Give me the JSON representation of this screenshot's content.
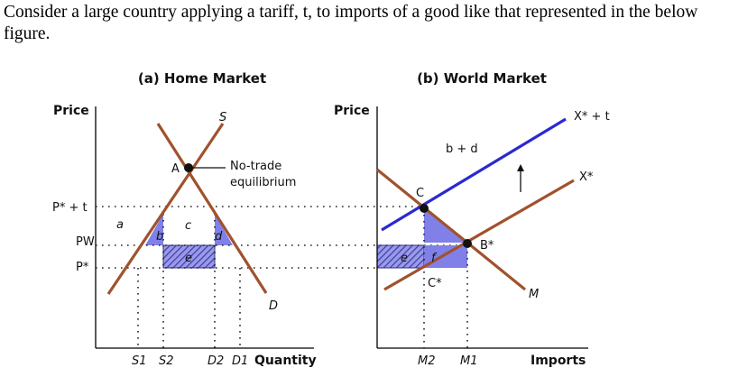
{
  "question": "Consider a large country applying a tariff, t, to imports of a good like that represented in the below figure.",
  "colors": {
    "demand_supply": "#a0522d",
    "shifted_export_supply": "#2a2ad0",
    "triangle_fill": "#8080e8",
    "rect_hatch": "#3c3ca8",
    "axis": "#000000"
  },
  "home": {
    "title": "(a) Home Market",
    "y_axis_label": "Price",
    "x_axis_label": "Quantity",
    "supply_label": "S",
    "demand_label": "D",
    "point_a": "A",
    "no_trade_line1": "No-trade",
    "no_trade_line2": "equilibrium",
    "price_pt": "P* + t",
    "price_pw": "PW",
    "price_p": "P*",
    "area_a": "a",
    "area_b": "b",
    "area_c": "c",
    "area_d": "d",
    "area_e": "e",
    "s1": "S1",
    "s2": "S2",
    "d2": "D2",
    "d1": "D1"
  },
  "world": {
    "title": "(b) World Market",
    "y_axis_label": "Price",
    "x_axis_label": "Imports",
    "xt_label": "X* + t",
    "x_label": "X*",
    "m_label": "M",
    "bd_label": "b + d",
    "point_c": "C",
    "point_b": "B*",
    "point_cstar": "C*",
    "area_e": "e",
    "area_f": "f",
    "m2": "M2",
    "m1": "M1"
  }
}
